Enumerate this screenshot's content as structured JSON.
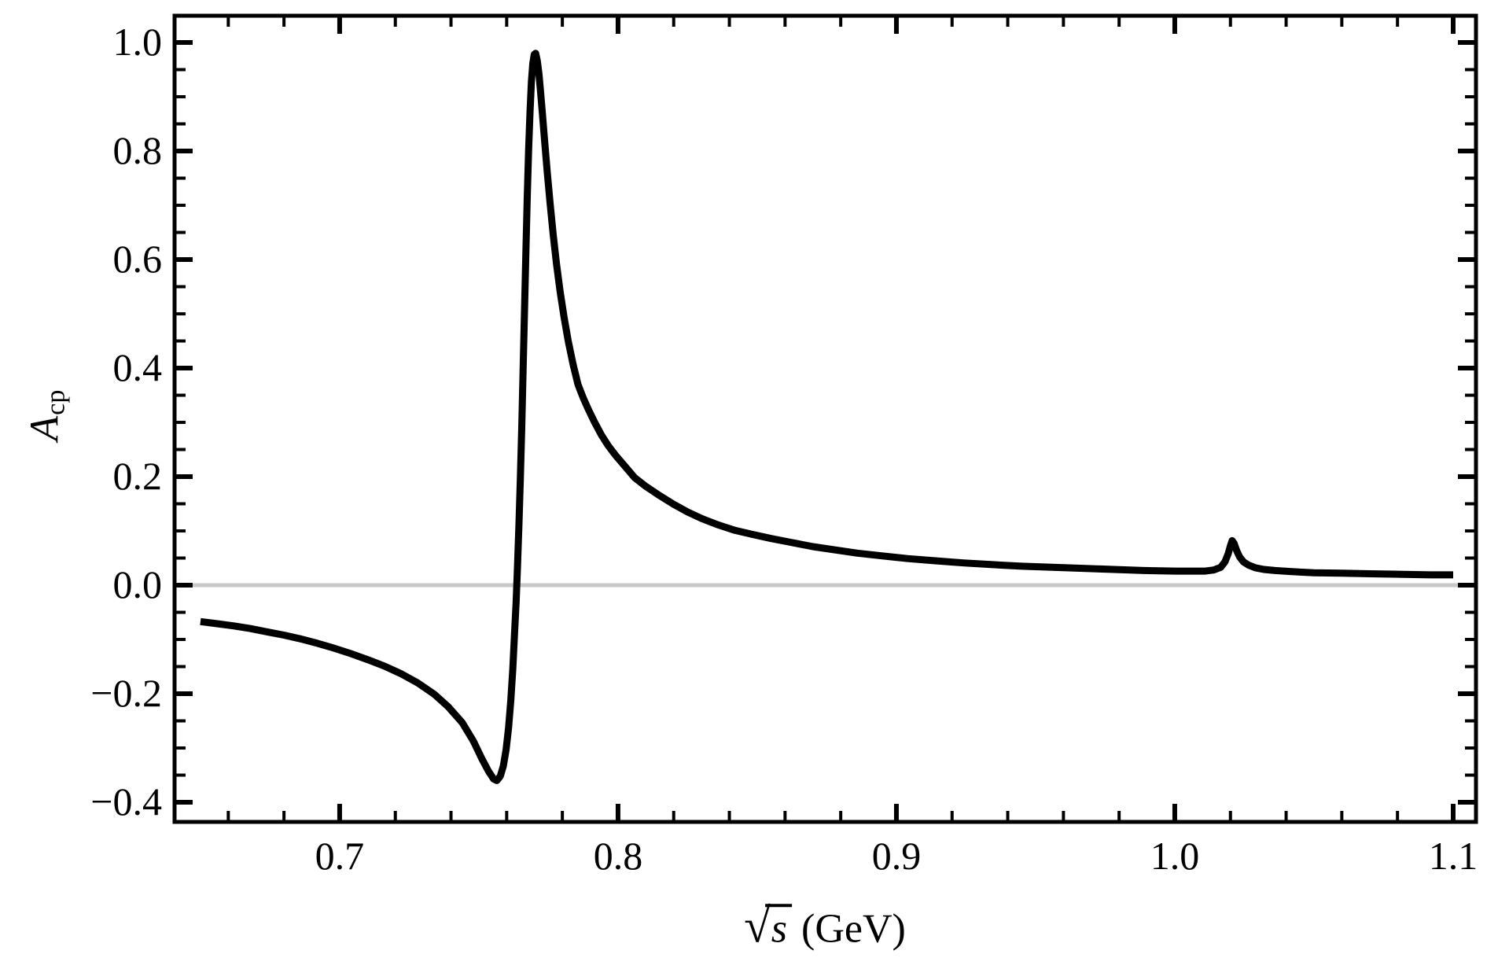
{
  "figure": {
    "background": "#ffffff",
    "frame_color": "#000000"
  },
  "chart_data": {
    "type": "line",
    "title": "",
    "xlabel": {
      "radical": "√",
      "variable": "s",
      "unit": "(GeV)"
    },
    "ylabel": {
      "symbol": "A",
      "subscript": "cp"
    },
    "xlim": [
      0.6407,
      1.1082
    ],
    "ylim": [
      -0.4362,
      1.0493
    ],
    "grid": "off",
    "legend": "none",
    "frame": "box",
    "x_axis": {
      "major_ticks": [
        0.7,
        0.8,
        0.9,
        1.0,
        1.1
      ],
      "major_labels": [
        "0.7",
        "0.8",
        "0.9",
        "1.0",
        "1.1"
      ],
      "minor_ticks": [
        0.66,
        0.68,
        0.72,
        0.74,
        0.76,
        0.78,
        0.82,
        0.84,
        0.86,
        0.88,
        0.92,
        0.94,
        0.96,
        0.98,
        1.02,
        1.04,
        1.06,
        1.08
      ]
    },
    "y_axis": {
      "major_ticks": [
        -0.4,
        -0.2,
        0.0,
        0.2,
        0.4,
        0.6,
        0.8,
        1.0
      ],
      "major_labels": [
        "−0.4",
        "−0.2",
        "0.0",
        "0.2",
        "0.4",
        "0.6",
        "0.8",
        "1.0"
      ],
      "minor_ticks": [
        -0.35,
        -0.3,
        -0.25,
        -0.15,
        -0.1,
        -0.05,
        0.05,
        0.1,
        0.15,
        0.25,
        0.3,
        0.35,
        0.45,
        0.5,
        0.55,
        0.65,
        0.7,
        0.75,
        0.85,
        0.9,
        0.95
      ]
    },
    "zero_line": {
      "y": 0.0,
      "color": "#c8c8c8",
      "width": 5
    },
    "series": [
      {
        "name": "Acp-curve",
        "color": "#000000",
        "stroke_width": 9,
        "points": [
          [
            0.65,
            -0.067
          ],
          [
            0.656,
            -0.071
          ],
          [
            0.662,
            -0.075
          ],
          [
            0.668,
            -0.08
          ],
          [
            0.674,
            -0.086
          ],
          [
            0.68,
            -0.092
          ],
          [
            0.686,
            -0.099
          ],
          [
            0.692,
            -0.107
          ],
          [
            0.698,
            -0.116
          ],
          [
            0.704,
            -0.126
          ],
          [
            0.71,
            -0.137
          ],
          [
            0.716,
            -0.149
          ],
          [
            0.722,
            -0.163
          ],
          [
            0.728,
            -0.18
          ],
          [
            0.734,
            -0.201
          ],
          [
            0.739,
            -0.224
          ],
          [
            0.744,
            -0.253
          ],
          [
            0.748,
            -0.287
          ],
          [
            0.751,
            -0.319
          ],
          [
            0.7535,
            -0.343
          ],
          [
            0.7553,
            -0.357
          ],
          [
            0.7565,
            -0.36
          ],
          [
            0.7577,
            -0.352
          ],
          [
            0.7588,
            -0.333
          ],
          [
            0.7598,
            -0.303
          ],
          [
            0.7607,
            -0.262
          ],
          [
            0.7615,
            -0.212
          ],
          [
            0.7622,
            -0.155
          ],
          [
            0.7628,
            -0.093
          ],
          [
            0.7634,
            -0.03
          ],
          [
            0.7639,
            0.035
          ],
          [
            0.7644,
            0.11
          ],
          [
            0.7649,
            0.195
          ],
          [
            0.7654,
            0.29
          ],
          [
            0.7659,
            0.395
          ],
          [
            0.7664,
            0.505
          ],
          [
            0.7669,
            0.615
          ],
          [
            0.7674,
            0.715
          ],
          [
            0.7679,
            0.805
          ],
          [
            0.7684,
            0.875
          ],
          [
            0.7689,
            0.928
          ],
          [
            0.7694,
            0.962
          ],
          [
            0.7699,
            0.978
          ],
          [
            0.7704,
            0.98
          ],
          [
            0.771,
            0.966
          ],
          [
            0.7716,
            0.942
          ],
          [
            0.7722,
            0.908
          ],
          [
            0.7729,
            0.865
          ],
          [
            0.7737,
            0.815
          ],
          [
            0.7746,
            0.76
          ],
          [
            0.7756,
            0.703
          ],
          [
            0.7767,
            0.646
          ],
          [
            0.7779,
            0.592
          ],
          [
            0.7792,
            0.541
          ],
          [
            0.7806,
            0.494
          ],
          [
            0.7821,
            0.45
          ],
          [
            0.7838,
            0.408
          ],
          [
            0.7856,
            0.37
          ],
          [
            0.7875,
            0.345
          ],
          [
            0.7895,
            0.322
          ],
          [
            0.7916,
            0.3
          ],
          [
            0.794,
            0.277
          ],
          [
            0.7965,
            0.257
          ],
          [
            0.799,
            0.24
          ],
          [
            0.802,
            0.222
          ],
          [
            0.806,
            0.198
          ],
          [
            0.81,
            0.182
          ],
          [
            0.815,
            0.165
          ],
          [
            0.82,
            0.149
          ],
          [
            0.825,
            0.135
          ],
          [
            0.83,
            0.123
          ],
          [
            0.836,
            0.111
          ],
          [
            0.842,
            0.101
          ],
          [
            0.848,
            0.094
          ],
          [
            0.855,
            0.086
          ],
          [
            0.862,
            0.079
          ],
          [
            0.87,
            0.071
          ],
          [
            0.878,
            0.065
          ],
          [
            0.886,
            0.059
          ],
          [
            0.895,
            0.054
          ],
          [
            0.904,
            0.049
          ],
          [
            0.914,
            0.045
          ],
          [
            0.924,
            0.041
          ],
          [
            0.934,
            0.038
          ],
          [
            0.945,
            0.035
          ],
          [
            0.956,
            0.033
          ],
          [
            0.967,
            0.031
          ],
          [
            0.978,
            0.029
          ],
          [
            0.989,
            0.027
          ],
          [
            1.0,
            0.026
          ],
          [
            1.006,
            0.026
          ],
          [
            1.011,
            0.026
          ],
          [
            1.014,
            0.028
          ],
          [
            1.0165,
            0.033
          ],
          [
            1.018,
            0.043
          ],
          [
            1.0192,
            0.058
          ],
          [
            1.02,
            0.073
          ],
          [
            1.0206,
            0.082
          ],
          [
            1.0213,
            0.077
          ],
          [
            1.0222,
            0.064
          ],
          [
            1.0233,
            0.052
          ],
          [
            1.0247,
            0.043
          ],
          [
            1.0265,
            0.037
          ],
          [
            1.029,
            0.032
          ],
          [
            1.032,
            0.029
          ],
          [
            1.036,
            0.027
          ],
          [
            1.042,
            0.025
          ],
          [
            1.05,
            0.023
          ],
          [
            1.06,
            0.022
          ],
          [
            1.07,
            0.021
          ],
          [
            1.082,
            0.02
          ],
          [
            1.092,
            0.019
          ],
          [
            1.1,
            0.019
          ]
        ]
      }
    ]
  }
}
